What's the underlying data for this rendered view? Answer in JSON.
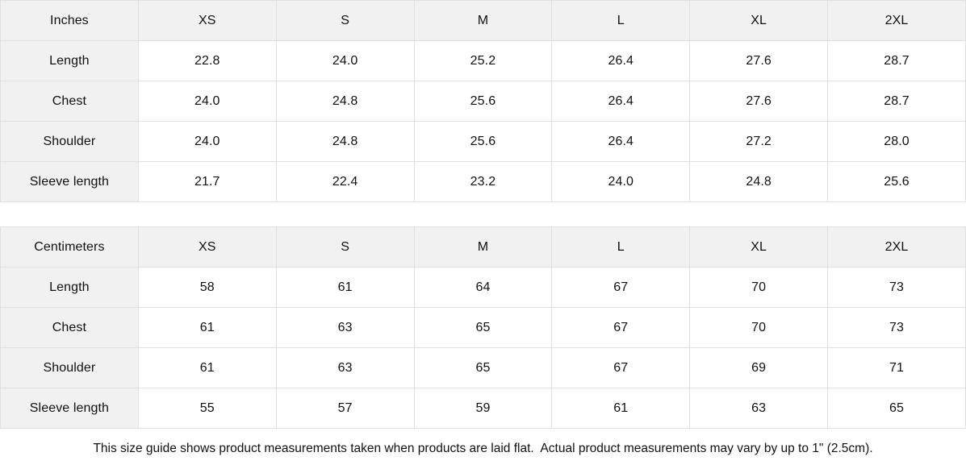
{
  "colors": {
    "cell_header_bg": "#f1f1f1",
    "border": "#e0e0e0",
    "text": "#111111",
    "page_bg": "#ffffff"
  },
  "tables": [
    {
      "unit_label": "Inches",
      "size_headers": [
        "XS",
        "S",
        "M",
        "L",
        "XL",
        "2XL"
      ],
      "rows": [
        {
          "label": "Length",
          "values": [
            "22.8",
            "24.0",
            "25.2",
            "26.4",
            "27.6",
            "28.7"
          ]
        },
        {
          "label": "Chest",
          "values": [
            "24.0",
            "24.8",
            "25.6",
            "26.4",
            "27.6",
            "28.7"
          ]
        },
        {
          "label": "Shoulder",
          "values": [
            "24.0",
            "24.8",
            "25.6",
            "26.4",
            "27.2",
            "28.0"
          ]
        },
        {
          "label": "Sleeve length",
          "values": [
            "21.7",
            "22.4",
            "23.2",
            "24.0",
            "24.8",
            "25.6"
          ]
        }
      ]
    },
    {
      "unit_label": "Centimeters",
      "size_headers": [
        "XS",
        "S",
        "M",
        "L",
        "XL",
        "2XL"
      ],
      "rows": [
        {
          "label": "Length",
          "values": [
            "58",
            "61",
            "64",
            "67",
            "70",
            "73"
          ]
        },
        {
          "label": "Chest",
          "values": [
            "61",
            "63",
            "65",
            "67",
            "70",
            "73"
          ]
        },
        {
          "label": "Shoulder",
          "values": [
            "61",
            "63",
            "65",
            "67",
            "69",
            "71"
          ]
        },
        {
          "label": "Sleeve length",
          "values": [
            "55",
            "57",
            "59",
            "61",
            "63",
            "65"
          ]
        }
      ]
    }
  ],
  "footer": {
    "note": "This size guide shows product measurements taken when products are laid flat.  Actual product measurements may vary by up to 1\" (2.5cm)."
  }
}
